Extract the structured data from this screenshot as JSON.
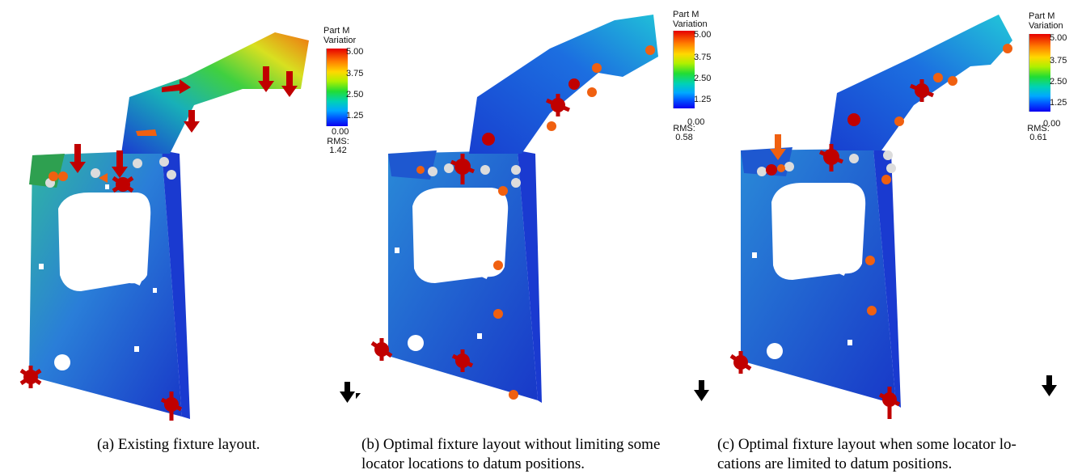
{
  "figures": [
    {
      "legend_title": "Part M\nVariatior",
      "ticks": [
        "5.00",
        "3.75",
        "2.50",
        "1.25",
        "0.00"
      ],
      "rms_label": "RMS:",
      "rms_value": "1.42",
      "caption": "(a) Existing fixture layout."
    },
    {
      "legend_title": "Part M\nVariation",
      "ticks": [
        "5.00",
        "3.75",
        "2.50",
        "1.25",
        "0.00"
      ],
      "rms_label": "RMS:",
      "rms_value": "0.58",
      "caption": "(b) Optimal fixture layout without limiting some\nlocator locations to datum positions."
    },
    {
      "legend_title": "Part M\nVariation",
      "ticks": [
        "5.00",
        "3.75",
        "2.50",
        "1.25",
        "0.00"
      ],
      "rms_label": "RMS:",
      "rms_value": "0.61",
      "caption": "(c) Optimal fixture layout when some locator lo-\ncations are limited to datum positions."
    }
  ],
  "colors": {
    "locator_red": "#cc0000",
    "clamp_orange": "#f06010",
    "support_grey": "#d8d8d8",
    "part_blue": "#1a40d0",
    "part_high": "#e05010"
  }
}
